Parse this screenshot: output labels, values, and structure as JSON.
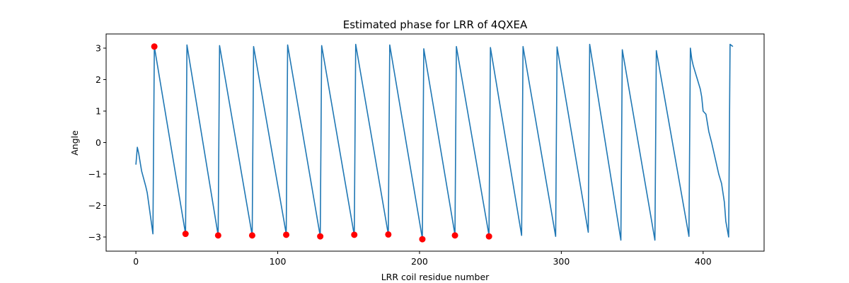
{
  "chart_data": {
    "type": "line",
    "title": "Estimated phase for LRR of 4QXEA",
    "xlabel": "LRR coil residue number",
    "ylabel": "Angle",
    "xlim": [
      -21,
      443
    ],
    "ylim": [
      -3.45,
      3.45
    ],
    "xticks": [
      0,
      100,
      200,
      300,
      400
    ],
    "yticks": [
      -3,
      -2,
      -1,
      0,
      1,
      2,
      3
    ],
    "grid": false,
    "colors": {
      "line": "#1f77b4",
      "markers": "#ff0000"
    },
    "series": [
      {
        "anchors": [
          [
            0,
            -0.7
          ],
          [
            1,
            -0.15
          ],
          [
            2,
            -0.35
          ],
          [
            4,
            -0.9
          ],
          [
            7,
            -1.4
          ],
          [
            8,
            -1.6
          ],
          [
            12,
            -2.9
          ],
          [
            13,
            3.05
          ],
          [
            35,
            -2.9
          ],
          [
            36,
            3.1
          ],
          [
            58,
            -2.95
          ],
          [
            59,
            3.08
          ],
          [
            82,
            -2.95
          ],
          [
            83,
            3.05
          ],
          [
            106,
            -2.9
          ],
          [
            107,
            3.1
          ],
          [
            130,
            -2.98
          ],
          [
            131,
            3.08
          ],
          [
            154,
            -2.95
          ],
          [
            155,
            3.12
          ],
          [
            178,
            -2.92
          ],
          [
            179,
            3.1
          ],
          [
            202,
            -3.05
          ],
          [
            203,
            2.98
          ],
          [
            225,
            -2.93
          ],
          [
            226,
            3.05
          ],
          [
            249,
            -2.95
          ],
          [
            250,
            3.02
          ],
          [
            272,
            -2.95
          ],
          [
            273,
            3.05
          ],
          [
            296,
            -2.98
          ],
          [
            297,
            3.04
          ],
          [
            319,
            -2.85
          ],
          [
            320,
            3.12
          ],
          [
            342,
            -3.1
          ],
          [
            343,
            2.95
          ],
          [
            366,
            -3.1
          ],
          [
            367,
            2.92
          ],
          [
            390,
            -2.98
          ],
          [
            391,
            3.0
          ],
          [
            392,
            2.65
          ],
          [
            393,
            2.45
          ],
          [
            394,
            2.3
          ],
          [
            396,
            2.0
          ],
          [
            398,
            1.7
          ],
          [
            399,
            1.45
          ],
          [
            400,
            1.0
          ],
          [
            402,
            0.9
          ],
          [
            404,
            0.35
          ],
          [
            406,
            0.0
          ],
          [
            407,
            -0.2
          ],
          [
            408,
            -0.4
          ],
          [
            409,
            -0.6
          ],
          [
            411,
            -1.0
          ],
          [
            413,
            -1.3
          ],
          [
            414,
            -1.6
          ],
          [
            415,
            -1.9
          ],
          [
            416,
            -2.5
          ],
          [
            417,
            -2.75
          ],
          [
            418,
            -3.0
          ],
          [
            419,
            3.12
          ],
          [
            421,
            3.05
          ]
        ]
      },
      {
        "points": [
          [
            13,
            3.05
          ],
          [
            35,
            -2.9
          ],
          [
            58,
            -2.95
          ],
          [
            82,
            -2.95
          ],
          [
            106,
            -2.93
          ],
          [
            130,
            -2.98
          ],
          [
            154,
            -2.93
          ],
          [
            178,
            -2.92
          ],
          [
            202,
            -3.07
          ],
          [
            225,
            -2.95
          ],
          [
            249,
            -2.98
          ]
        ]
      }
    ]
  }
}
